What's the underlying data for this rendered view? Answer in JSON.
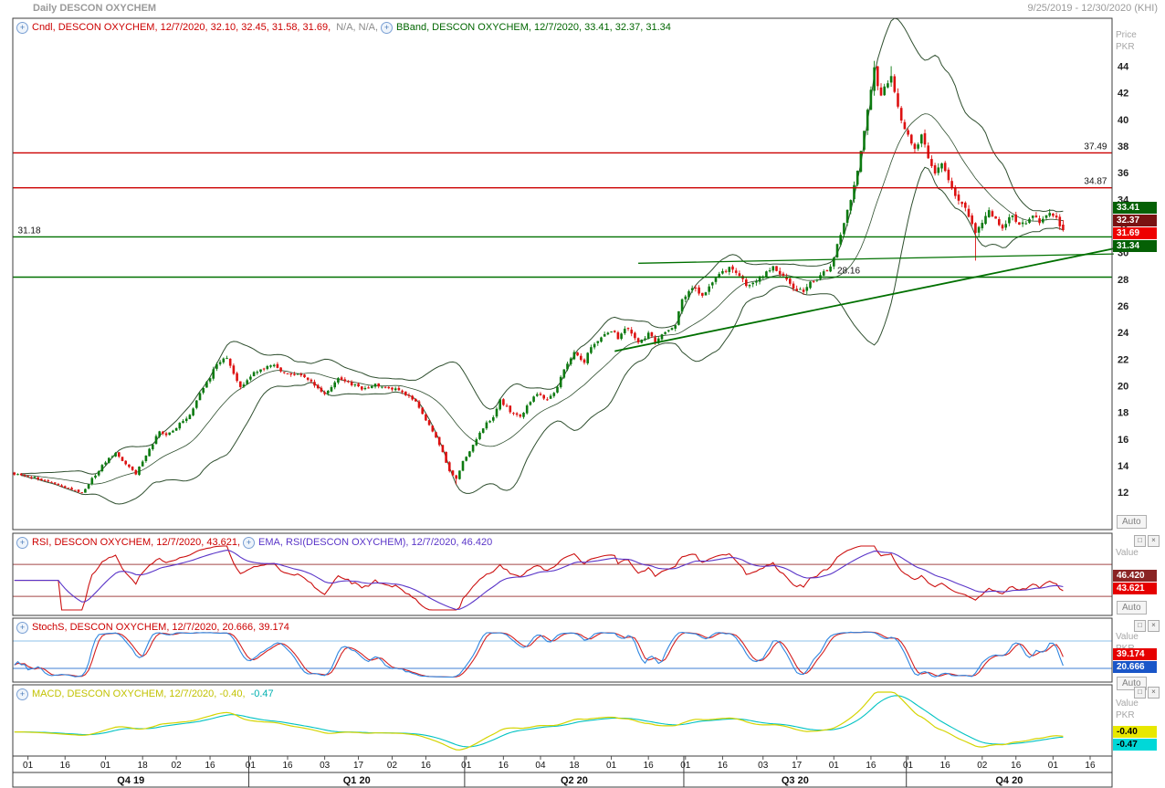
{
  "title_bar": {
    "left": "Daily DESCON OXYCHEM",
    "right": "9/25/2019 - 12/30/2020 (KHI)"
  },
  "colors": {
    "up": "#0c7a10",
    "down": "#dd1111",
    "bband": "#2f4f2f",
    "rsi": "#cc1111",
    "rsi_ema": "#5a35c8",
    "rsi_hline": "#a34646",
    "stoch_k": "#2f86e0",
    "stoch_d": "#d42020",
    "stoch_hline_hi": "#8cc0ea",
    "stoch_hline_lo": "#3f7fd6",
    "macd": "#d4d400",
    "macd_signal": "#00c2c2",
    "legend_red": "#cc0000",
    "legend_green": "#006600",
    "legend_gray": "#8a8a8a",
    "legend_purple": "#5a35c8",
    "legend_yellow": "#c2c200",
    "legend_cyan": "#00b0b0",
    "level_red": "#cc0000",
    "level_green": "#007000",
    "axis_text": "#222222"
  },
  "legends": {
    "cndl": "Cndl, DESCON OXYCHEM, 12/7/2020, 32.10, 32.45, 31.58, 31.69,",
    "cndl_na": " N/A, N/A,",
    "bband": "BBand, DESCON OXYCHEM, 12/7/2020, 33.41, 32.37, 31.34",
    "rsi": "RSI, DESCON OXYCHEM, 12/7/2020, 43.621,",
    "rsi_ema": "EMA, RSI(DESCON OXYCHEM), 12/7/2020, 46.420",
    "stoch": "StochS, DESCON OXYCHEM, 12/7/2020, 20.666, 39.174",
    "macd": "MACD, DESCON OXYCHEM, 12/7/2020, -0.40,",
    "macd_signal": " -0.47"
  },
  "pane_buttons": {
    "maximize": "□",
    "close": "×"
  },
  "axis": {
    "price_title": [
      "Price",
      "PKR"
    ],
    "rsi_title": [
      "Value"
    ],
    "stoch_title": [
      "Value",
      "PKR"
    ],
    "macd_title": [
      "Value",
      "PKR"
    ],
    "auto_label": "Auto",
    "price_boxes": [
      {
        "text": "33.41",
        "bg": "#056005",
        "fg": "#ffffff"
      },
      {
        "text": "32.37",
        "bg": "#7a1212",
        "fg": "#ffffff"
      },
      {
        "text": "31.69",
        "bg": "#ee0000",
        "fg": "#ffffff"
      },
      {
        "text": "31.34",
        "bg": "#056005",
        "fg": "#ffffff"
      }
    ],
    "rsi_boxes": [
      {
        "text": "46.420",
        "bg": "#8a2424",
        "fg": "#ffffff"
      },
      {
        "text": "43.621",
        "bg": "#e60000",
        "fg": "#ffffff"
      }
    ],
    "stoch_boxes": [
      {
        "text": "39.174",
        "bg": "#e60000",
        "fg": "#ffffff"
      },
      {
        "text": "20.666",
        "bg": "#1a56c8",
        "fg": "#ffffff"
      }
    ],
    "macd_boxes": [
      {
        "text": "-0.40",
        "bg": "#e8e800",
        "fg": "#000000"
      },
      {
        "text": "-0.47",
        "bg": "#00d8d8",
        "fg": "#000000"
      }
    ]
  },
  "chart_data": {
    "type": "candlestick+indicators",
    "symbol": "DESCON OXYCHEM",
    "timeframe": "Daily",
    "last_date": "12/7/2020",
    "x_axis": {
      "total_slots": 326,
      "ticks": [
        {
          "i": 4,
          "l": "01"
        },
        {
          "i": 15,
          "l": "16"
        },
        {
          "i": 27,
          "l": "01"
        },
        {
          "i": 38,
          "l": "18"
        },
        {
          "i": 48,
          "l": "02"
        },
        {
          "i": 58,
          "l": "16"
        },
        {
          "i": 70,
          "l": "01"
        },
        {
          "i": 81,
          "l": "16"
        },
        {
          "i": 92,
          "l": "03"
        },
        {
          "i": 102,
          "l": "17"
        },
        {
          "i": 112,
          "l": "02"
        },
        {
          "i": 122,
          "l": "16"
        },
        {
          "i": 134,
          "l": "01"
        },
        {
          "i": 145,
          "l": "16"
        },
        {
          "i": 156,
          "l": "04"
        },
        {
          "i": 166,
          "l": "18"
        },
        {
          "i": 177,
          "l": "01"
        },
        {
          "i": 188,
          "l": "16"
        },
        {
          "i": 199,
          "l": "01"
        },
        {
          "i": 210,
          "l": "16"
        },
        {
          "i": 222,
          "l": "03"
        },
        {
          "i": 232,
          "l": "17"
        },
        {
          "i": 243,
          "l": "01"
        },
        {
          "i": 254,
          "l": "16"
        },
        {
          "i": 265,
          "l": "01"
        },
        {
          "i": 276,
          "l": "16"
        },
        {
          "i": 287,
          "l": "02"
        },
        {
          "i": 297,
          "l": "16"
        },
        {
          "i": 308,
          "l": "01"
        },
        {
          "i": 319,
          "l": "16"
        }
      ],
      "quarters": [
        {
          "label": "Q4 19",
          "from": 0,
          "to": 70
        },
        {
          "label": "Q1 20",
          "from": 70,
          "to": 134
        },
        {
          "label": "Q2 20",
          "from": 134,
          "to": 199
        },
        {
          "label": "Q3 20",
          "from": 199,
          "to": 265
        },
        {
          "label": "Q4 20",
          "from": 265,
          "to": 326
        }
      ]
    },
    "price": {
      "type": "candlestick",
      "ylim": [
        9.2,
        47.6
      ],
      "yticks": [
        44,
        42,
        40,
        38,
        36,
        34,
        32,
        30,
        28,
        26,
        24,
        22,
        20,
        18,
        16,
        14,
        12
      ],
      "candle_count": 312,
      "close_anchors": [
        [
          0,
          13.4
        ],
        [
          6,
          13.1
        ],
        [
          11,
          12.8
        ],
        [
          17,
          12.2
        ],
        [
          20,
          11.95
        ],
        [
          23,
          13.0
        ],
        [
          27,
          14.3
        ],
        [
          30,
          14.9
        ],
        [
          34,
          13.9
        ],
        [
          36,
          13.4
        ],
        [
          40,
          15.2
        ],
        [
          43,
          16.6
        ],
        [
          45,
          16.2
        ],
        [
          48,
          16.9
        ],
        [
          52,
          17.8
        ],
        [
          54,
          18.9
        ],
        [
          57,
          20.2
        ],
        [
          60,
          21.6
        ],
        [
          63,
          22.2
        ],
        [
          65,
          20.9
        ],
        [
          67,
          19.9
        ],
        [
          70,
          20.8
        ],
        [
          73,
          21.3
        ],
        [
          77,
          21.5
        ],
        [
          81,
          20.9
        ],
        [
          86,
          20.7
        ],
        [
          90,
          19.8
        ],
        [
          92,
          19.4
        ],
        [
          96,
          20.6
        ],
        [
          99,
          20.3
        ],
        [
          103,
          19.7
        ],
        [
          107,
          20.1
        ],
        [
          111,
          19.9
        ],
        [
          115,
          19.5
        ],
        [
          119,
          18.8
        ],
        [
          121,
          17.9
        ],
        [
          124,
          16.6
        ],
        [
          127,
          15.0
        ],
        [
          129,
          13.6
        ],
        [
          131,
          12.95
        ],
        [
          133,
          14.3
        ],
        [
          136,
          15.6
        ],
        [
          139,
          16.9
        ],
        [
          142,
          17.7
        ],
        [
          144,
          18.9
        ],
        [
          147,
          18.1
        ],
        [
          150,
          17.6
        ],
        [
          152,
          18.5
        ],
        [
          155,
          19.4
        ],
        [
          158,
          18.9
        ],
        [
          161,
          19.9
        ],
        [
          163,
          21.3
        ],
        [
          166,
          22.4
        ],
        [
          169,
          21.8
        ],
        [
          171,
          22.9
        ],
        [
          174,
          23.7
        ],
        [
          177,
          24.2
        ],
        [
          179,
          23.6
        ],
        [
          182,
          24.4
        ],
        [
          185,
          23.2
        ],
        [
          188,
          23.9
        ],
        [
          190,
          23.4
        ],
        [
          193,
          24.0
        ],
        [
          196,
          24.5
        ],
        [
          198,
          26.4
        ],
        [
          201,
          27.4
        ],
        [
          204,
          26.9
        ],
        [
          207,
          27.6
        ],
        [
          209,
          28.3
        ],
        [
          212,
          28.9
        ],
        [
          215,
          28.2
        ],
        [
          217,
          27.6
        ],
        [
          220,
          28.0
        ],
        [
          223,
          28.5
        ],
        [
          225,
          28.9
        ],
        [
          228,
          28.3
        ],
        [
          231,
          27.4
        ],
        [
          234,
          27.0
        ],
        [
          236,
          27.7
        ],
        [
          239,
          28.2
        ],
        [
          242,
          28.9
        ],
        [
          244,
          30.6
        ],
        [
          247,
          33.1
        ],
        [
          250,
          36.1
        ],
        [
          252,
          39.2
        ],
        [
          254,
          42.2
        ],
        [
          255,
          43.8
        ],
        [
          257,
          41.6
        ],
        [
          259,
          42.9
        ],
        [
          260,
          43.2
        ],
        [
          262,
          41.0
        ],
        [
          264,
          39.3
        ],
        [
          267,
          37.9
        ],
        [
          269,
          38.7
        ],
        [
          271,
          37.3
        ],
        [
          273,
          35.9
        ],
        [
          275,
          36.7
        ],
        [
          277,
          35.3
        ],
        [
          279,
          34.4
        ],
        [
          281,
          33.7
        ],
        [
          283,
          32.7
        ],
        [
          285,
          31.3
        ],
        [
          287,
          32.3
        ],
        [
          289,
          33.1
        ],
        [
          291,
          32.5
        ],
        [
          293,
          32.0
        ],
        [
          296,
          32.7
        ],
        [
          298,
          32.0
        ],
        [
          300,
          32.4
        ],
        [
          302,
          32.8
        ],
        [
          304,
          32.3
        ],
        [
          306,
          33.0
        ],
        [
          309,
          32.5
        ],
        [
          311,
          31.8
        ]
      ],
      "overrides": [
        {
          "i": 311,
          "o": 32.1,
          "h": 32.45,
          "l": 31.58,
          "c": 31.69
        },
        {
          "i": 255,
          "h": 44.4
        },
        {
          "i": 260,
          "h": 44.0
        },
        {
          "i": 285,
          "l": 29.4
        },
        {
          "i": 131,
          "l": 12.6
        }
      ],
      "bband": {
        "window": 20,
        "mult": 2,
        "last_upper": 33.41,
        "last_middle": 32.37,
        "last_lower": 31.34
      },
      "levels": [
        {
          "value": 37.49,
          "label": "37.49",
          "color": "#cc0000",
          "label_i": 324,
          "label_side": "end"
        },
        {
          "value": 34.87,
          "label": "34.87",
          "color": "#cc0000",
          "label_i": 324,
          "label_side": "end"
        },
        {
          "value": 31.18,
          "label": "31.18",
          "color": "#007000",
          "label_i": 1,
          "label_side": "start"
        },
        {
          "value": 28.16,
          "label": "28.16",
          "color": "#007000",
          "label_i": 244,
          "label_side": "start"
        }
      ],
      "trendlines": [
        {
          "from": [
            178,
            22.6
          ],
          "to": [
            326,
            30.3
          ],
          "width": 1.8
        },
        {
          "from": [
            185,
            29.2
          ],
          "to": [
            326,
            29.9
          ],
          "width": 1.3
        }
      ]
    },
    "rsi": {
      "type": "line",
      "period": 14,
      "ema_period": 14,
      "ylim": [
        13,
        93
      ],
      "hlines": [
        70,
        30
      ],
      "last": 43.621,
      "ema_last": 46.42
    },
    "stoch": {
      "type": "line",
      "k_period": 14,
      "smooth": 3,
      "ylim": [
        -4,
        104
      ],
      "hlines": [
        80,
        20
      ],
      "last_k": 20.666,
      "last_d": 39.174
    },
    "macd": {
      "type": "line",
      "fast": 12,
      "slow": 26,
      "signal": 9,
      "ylim": [
        -1.9,
        3.7
      ],
      "last": -0.4,
      "signal_last": -0.47
    }
  }
}
